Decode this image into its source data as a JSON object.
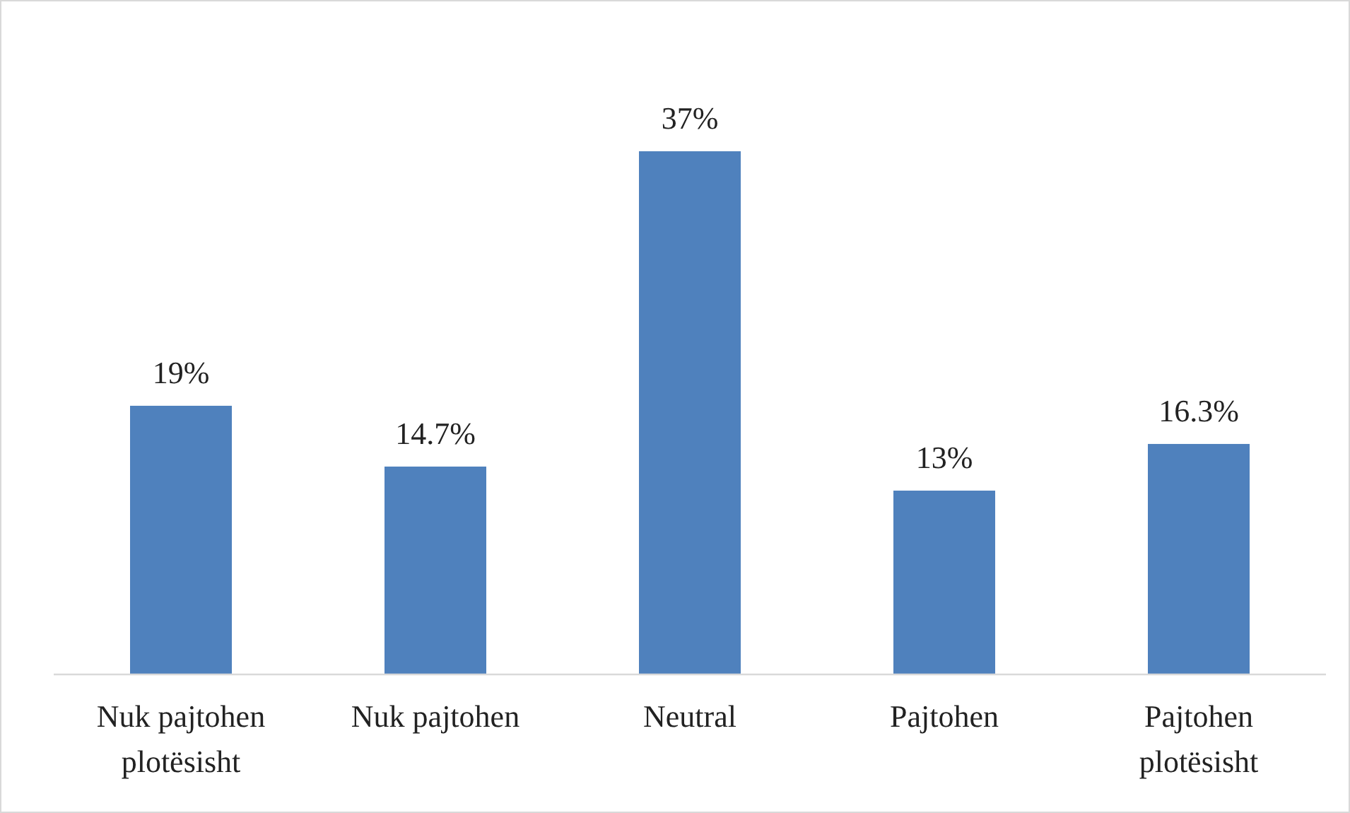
{
  "chart_data": {
    "type": "bar",
    "categories": [
      "Nuk pajtohen plotësisht",
      "Nuk pajtohen",
      "Neutral",
      "Pajtohen",
      "Pajtohen plotësisht"
    ],
    "values": [
      19,
      14.7,
      37,
      13,
      16.3
    ],
    "value_labels": [
      "19%",
      "14.7%",
      "37%",
      "13%",
      "16.3%"
    ],
    "color": "#4f81bd"
  }
}
